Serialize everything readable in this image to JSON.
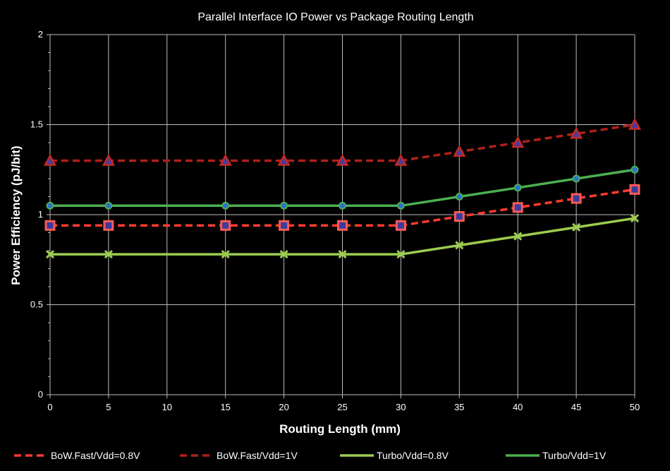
{
  "chart_data": {
    "type": "line",
    "title": "Parallel Interface IO Power vs Package Routing Length",
    "xlabel": "Routing Length (mm)",
    "ylabel": "Power Efficiency (pJ/bit)",
    "xlim": [
      0,
      50
    ],
    "ylim": [
      0,
      2
    ],
    "x_ticks": [
      0,
      5,
      10,
      15,
      20,
      25,
      30,
      35,
      40,
      45,
      50
    ],
    "y_ticks": [
      0,
      0.5,
      1,
      1.5,
      2
    ],
    "grid": true,
    "legend_position": "bottom",
    "series": [
      {
        "name": "BoW.Fast/Vdd=0.8V",
        "color": "#ff3b30",
        "dash": "dashed",
        "marker": "square",
        "x": [
          0,
          5,
          15,
          20,
          25,
          30,
          35,
          40,
          45,
          50
        ],
        "values": [
          0.94,
          0.94,
          0.94,
          0.94,
          0.94,
          0.94,
          0.99,
          1.04,
          1.09,
          1.14
        ]
      },
      {
        "name": "BoW.Fast/Vdd=1V",
        "color": "#b0201a",
        "dash": "dashed",
        "marker": "triangle",
        "x": [
          0,
          5,
          15,
          20,
          25,
          30,
          35,
          40,
          45,
          50
        ],
        "values": [
          1.3,
          1.3,
          1.3,
          1.3,
          1.3,
          1.3,
          1.35,
          1.4,
          1.45,
          1.5
        ]
      },
      {
        "name": "Turbo/Vdd=0.8V",
        "color": "#9ccc4f",
        "dash": "solid",
        "marker": "x",
        "x": [
          0,
          5,
          15,
          20,
          25,
          30,
          35,
          40,
          45,
          50
        ],
        "values": [
          0.78,
          0.78,
          0.78,
          0.78,
          0.78,
          0.78,
          0.83,
          0.88,
          0.93,
          0.98
        ]
      },
      {
        "name": "Turbo/Vdd=1V",
        "color": "#4caf50",
        "dash": "solid",
        "marker": "circle",
        "x": [
          0,
          5,
          15,
          20,
          25,
          30,
          35,
          40,
          45,
          50
        ],
        "values": [
          1.05,
          1.05,
          1.05,
          1.05,
          1.05,
          1.05,
          1.1,
          1.15,
          1.2,
          1.25
        ]
      }
    ]
  }
}
